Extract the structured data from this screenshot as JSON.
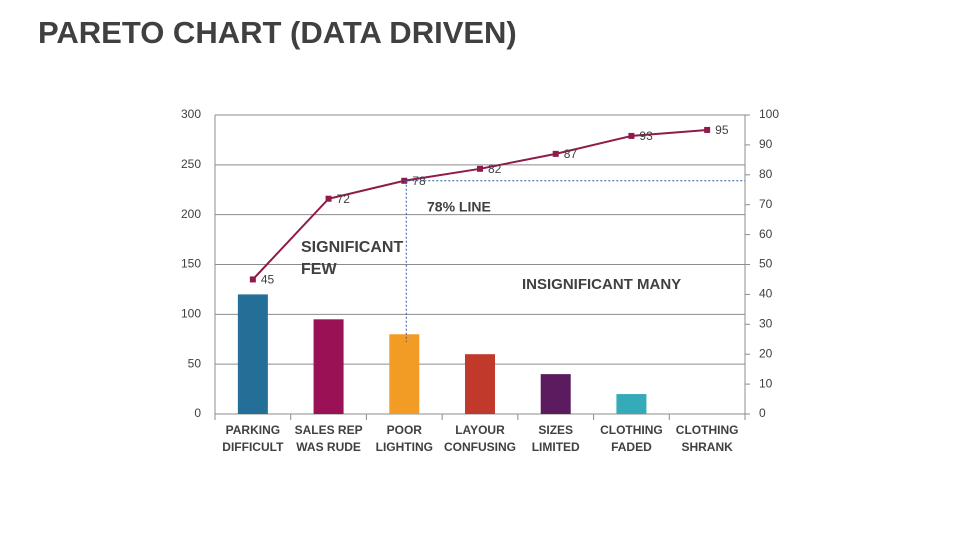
{
  "chart_data": {
    "type": "pareto",
    "title": "PARETO CHART (DATA DRIVEN)",
    "categories": [
      "PARKING\nDIFFICULT",
      "SALES REP\nWAS RUDE",
      "POOR\nLIGHTING",
      "LAYOUR\nCONFUSING",
      "SIZES\nLIMITED",
      "CLOTHING\nFADED",
      "CLOTHING\nSHRANK"
    ],
    "series": [
      {
        "type": "bar",
        "values": [
          120,
          95,
          80,
          60,
          40,
          20,
          0
        ],
        "colors": [
          "#246f97",
          "#9b1155",
          "#f29c26",
          "#c0392b",
          "#5b1b5e",
          "#35aab8",
          "#7f7f7f"
        ]
      },
      {
        "type": "line",
        "axis": "y2",
        "color": "#8e1b4a",
        "values": [
          45,
          72,
          78,
          82,
          87,
          93,
          95
        ]
      }
    ],
    "ylim": [
      0,
      300
    ],
    "yticks": [
      0,
      50,
      100,
      150,
      200,
      250,
      300
    ],
    "y2lim": [
      0,
      100
    ],
    "y2ticks": [
      0,
      10,
      20,
      30,
      40,
      50,
      60,
      70,
      80,
      90,
      100
    ],
    "grid": true,
    "annotations": [
      "SIGNIFICANT\nFEW",
      "78% LINE",
      "INSIGNIFICANT MANY"
    ]
  }
}
